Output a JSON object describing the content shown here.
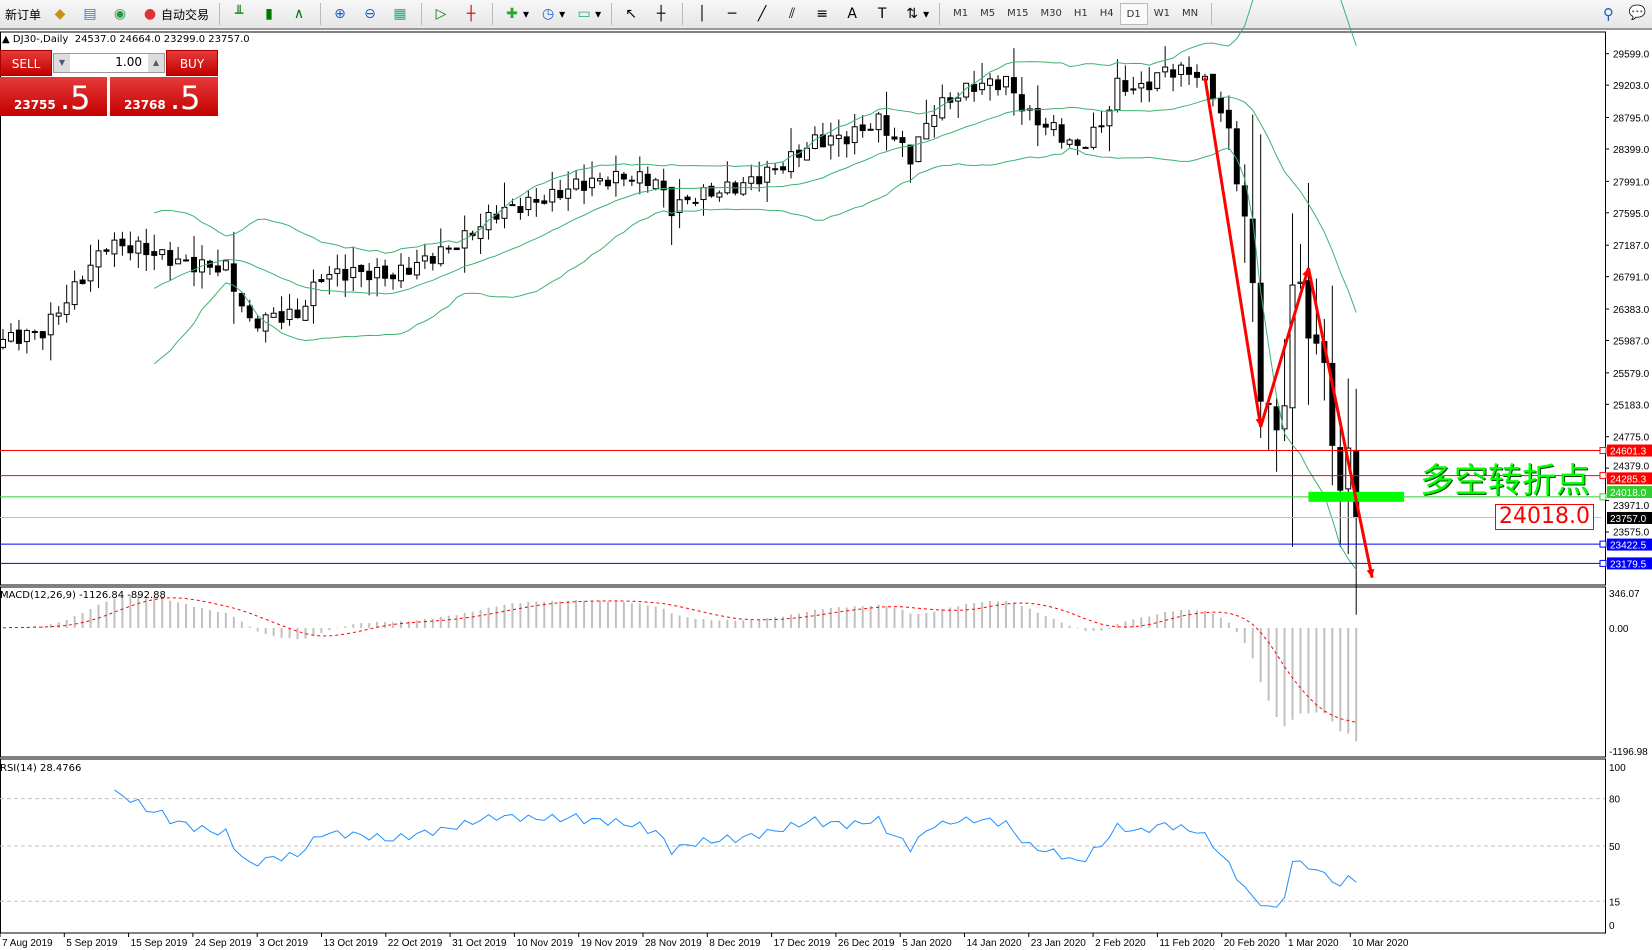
{
  "toolbar": {
    "new_order": "新订单",
    "auto_trading": "自动交易",
    "timeframes": [
      "M1",
      "M5",
      "M15",
      "M30",
      "H1",
      "H4",
      "D1",
      "W1",
      "MN"
    ],
    "active_timeframe": "D1"
  },
  "chart": {
    "title": "DJ30-,Daily",
    "ohlc": "24537.0 24664.0 23299.0 23757.0",
    "annotation": "多空转折点",
    "annotation_level": "24018.0",
    "colors": {
      "up": "#ffffff",
      "down": "#000000",
      "bands": "#3cb371",
      "arrow": "#ff0000",
      "rsi": "#1e90ff",
      "macd_signal": "#ff0000",
      "macd_hist": "#c0c0c0"
    }
  },
  "trade_panel": {
    "sell_label": "SELL",
    "buy_label": "BUY",
    "lot": "1.00",
    "sell_price_main": "23755",
    "sell_price_big": ".5",
    "buy_price_main": "23768",
    "buy_price_big": ".5"
  },
  "price_axis": [
    "29599.0",
    "29203.0",
    "28795.0",
    "28399.0",
    "27991.0",
    "27595.0",
    "27187.0",
    "26791.0",
    "26383.0",
    "25987.0",
    "25579.0",
    "25183.0",
    "24775.0",
    "24379.0",
    "23971.0",
    "23575.0"
  ],
  "levels": [
    {
      "value": "24601.3",
      "color": "#ff0000"
    },
    {
      "value": "24285.3",
      "color": "#ff0000"
    },
    {
      "value": "24018.0",
      "color": "#32cd32"
    },
    {
      "value": "23757.0",
      "color": "#000000",
      "line": "#c0c0c0"
    },
    {
      "value": "23422.5",
      "color": "#0000ff"
    },
    {
      "value": "23179.5",
      "color": "#0000ff"
    }
  ],
  "macd": {
    "title": "MACD(12,26,9) -1126.84 -892.88",
    "axis": [
      "346.07",
      "0.00",
      "-1196.98"
    ],
    "max": 346.07,
    "min": -1196.98
  },
  "rsi": {
    "title": "RSI(14) 28.4766",
    "axis": [
      "100",
      "80",
      "50",
      "15",
      "0"
    ],
    "levels": [
      80,
      50,
      15
    ]
  },
  "date_axis": [
    "7 Aug 2019",
    "5 Sep 2019",
    "15 Sep 2019",
    "24 Sep 2019",
    "3 Oct 2019",
    "13 Oct 2019",
    "22 Oct 2019",
    "31 Oct 2019",
    "10 Nov 2019",
    "19 Nov 2019",
    "28 Nov 2019",
    "8 Dec 2019",
    "17 Dec 2019",
    "26 Dec 2019",
    "5 Jan 2020",
    "14 Jan 2020",
    "23 Jan 2020",
    "2 Feb 2020",
    "11 Feb 2020",
    "20 Feb 2020",
    "1 Mar 2020",
    "10 Mar 2020"
  ],
  "chart_data": {
    "type": "candlestick",
    "close_keypoints": [
      [
        0,
        26000
      ],
      [
        5,
        26100
      ],
      [
        8,
        26500
      ],
      [
        13,
        27200
      ],
      [
        17,
        27150
      ],
      [
        23,
        26950
      ],
      [
        28,
        26900
      ],
      [
        31,
        26200
      ],
      [
        34,
        26300
      ],
      [
        37,
        26300
      ],
      [
        40,
        26800
      ],
      [
        44,
        26850
      ],
      [
        49,
        26800
      ],
      [
        53,
        27000
      ],
      [
        57,
        27200
      ],
      [
        62,
        27600
      ],
      [
        69,
        27800
      ],
      [
        72,
        27950
      ],
      [
        78,
        28050
      ],
      [
        82,
        28000
      ],
      [
        84,
        27650
      ],
      [
        87,
        27800
      ],
      [
        93,
        27950
      ],
      [
        98,
        28200
      ],
      [
        102,
        28500
      ],
      [
        106,
        28550
      ],
      [
        110,
        28750
      ],
      [
        114,
        28300
      ],
      [
        117,
        28900
      ],
      [
        122,
        29200
      ],
      [
        126,
        29250
      ],
      [
        129,
        28800
      ],
      [
        132,
        28650
      ],
      [
        135,
        28400
      ],
      [
        138,
        28700
      ],
      [
        140,
        29200
      ],
      [
        143,
        29150
      ],
      [
        146,
        29400
      ],
      [
        150,
        29350
      ],
      [
        152,
        29100
      ],
      [
        154,
        28600
      ],
      [
        156,
        27500
      ],
      [
        157,
        26700
      ],
      [
        158,
        25300
      ],
      [
        160,
        24900
      ],
      [
        161,
        25200
      ],
      [
        162,
        26600
      ],
      [
        163,
        26800
      ],
      [
        164,
        26000
      ],
      [
        166,
        25800
      ],
      [
        167,
        24600
      ],
      [
        168,
        24100
      ],
      [
        169,
        24700
      ],
      [
        170,
        23757
      ]
    ],
    "bollinger": "20,2",
    "arrows": [
      [
        151,
        29300,
        158,
        24900
      ],
      [
        158,
        24900,
        164,
        26900
      ],
      [
        164,
        26900,
        172,
        23000
      ]
    ],
    "highlight_bar": {
      "from": 164,
      "to": 176,
      "price": 24018.0
    }
  }
}
